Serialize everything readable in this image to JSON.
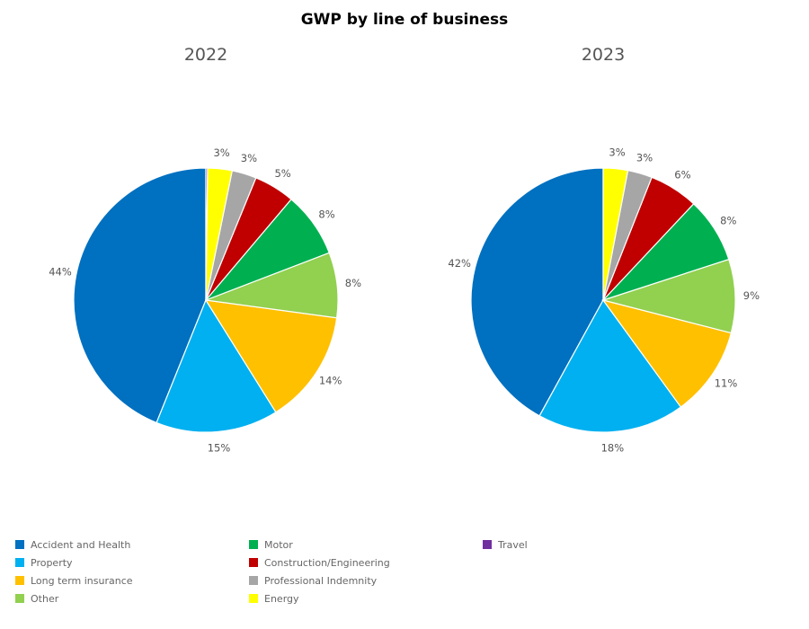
{
  "chart_data": {
    "type": "pie",
    "title": "GWP by line of business",
    "categories": [
      "Accident and Health",
      "Property",
      "Long term insurance",
      "Other",
      "Motor",
      "Construction/Engineering",
      "Professional Indemnity",
      "Energy",
      "Travel"
    ],
    "colors": [
      "#0070c0",
      "#00b0f0",
      "#ffc000",
      "#92d050",
      "#00b050",
      "#c00000",
      "#a6a6a6",
      "#ffff00",
      "#7030a0"
    ],
    "series": [
      {
        "name": "2022",
        "values": [
          44,
          15,
          14,
          8,
          8,
          5,
          3,
          3,
          0.2
        ],
        "labels": [
          "44%",
          "15%",
          "14%",
          "8%",
          "8%",
          "5%",
          "3%",
          "3%",
          ""
        ]
      },
      {
        "name": "2023",
        "values": [
          42,
          18,
          11,
          9,
          8,
          6,
          3,
          3,
          0
        ],
        "labels": [
          "42%",
          "18%",
          "11%",
          "9%",
          "8%",
          "6%",
          "3%",
          "3%",
          ""
        ]
      }
    ],
    "legend_position": "bottom",
    "start_angle": "12 o'clock, counterclockwise"
  },
  "legend": {
    "items": [
      {
        "label": "Accident and Health",
        "color": "#0070c0"
      },
      {
        "label": "Property",
        "color": "#00b0f0"
      },
      {
        "label": "Long term insurance",
        "color": "#ffc000"
      },
      {
        "label": "Other",
        "color": "#92d050"
      },
      {
        "label": "Motor",
        "color": "#00b050"
      },
      {
        "label": "Construction/Engineering",
        "color": "#c00000"
      },
      {
        "label": "Professional Indemnity",
        "color": "#a6a6a6"
      },
      {
        "label": "Energy",
        "color": "#ffff00"
      },
      {
        "label": "Travel",
        "color": "#7030a0"
      }
    ]
  }
}
